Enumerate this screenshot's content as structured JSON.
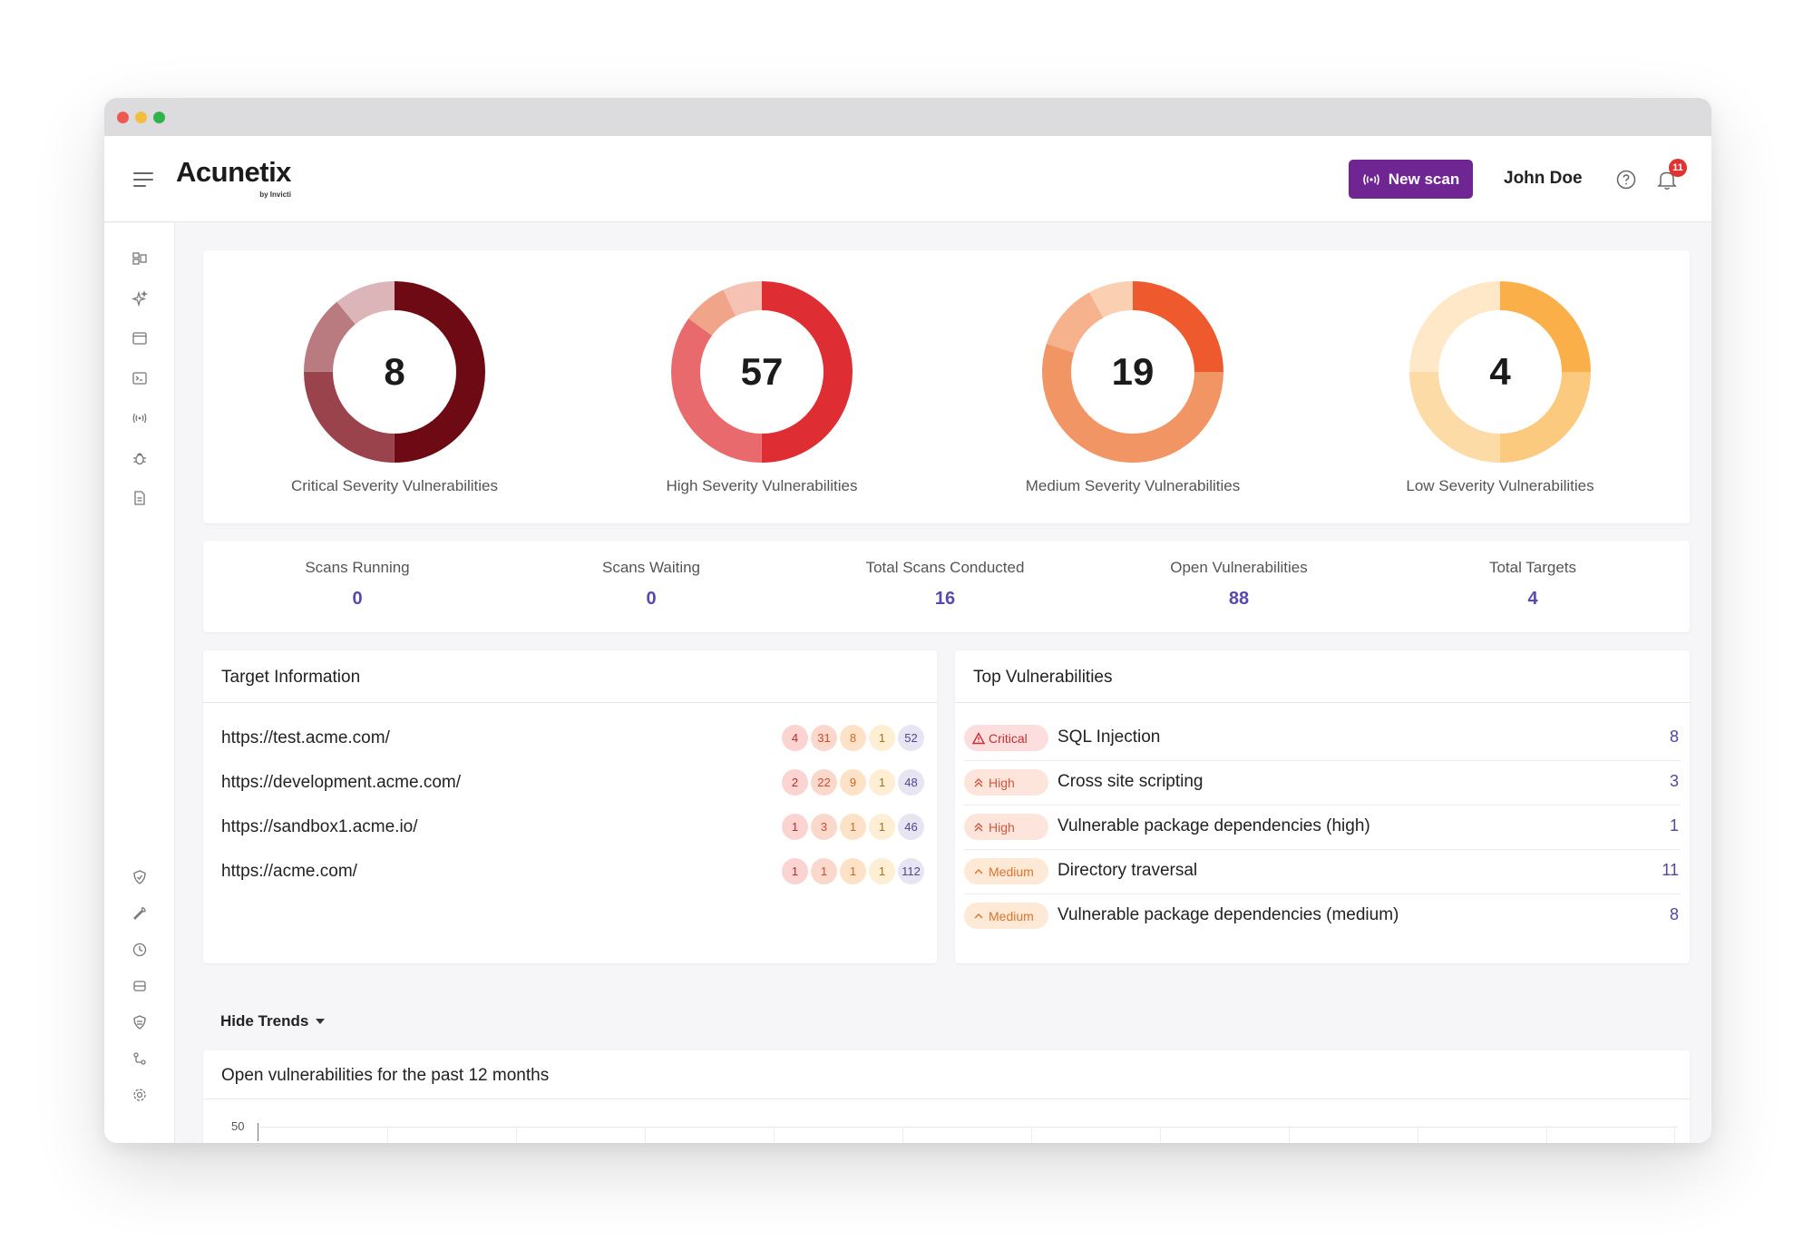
{
  "app": {
    "name": "Acunetix",
    "byline": "by Invicti"
  },
  "header": {
    "new_scan_label": "New scan",
    "user_name": "John Doe",
    "notification_count": "11"
  },
  "sidebar": {
    "top_icons": [
      "dashboard-icon",
      "sparkle-icon",
      "targets-icon",
      "terminal-icon",
      "scan-signal-icon",
      "bug-icon",
      "report-icon"
    ],
    "bottom_icons": [
      "shield-icon",
      "wrench-icon",
      "clock-icon",
      "storage-icon",
      "network-icon",
      "integrations-icon",
      "settings-icon"
    ]
  },
  "severity_summary": [
    {
      "count": "8",
      "label": "Critical Severity Vulnerabilities",
      "colors": [
        "#6e0a13",
        "#9a434c",
        "#b97a80",
        "#dcb5b8"
      ],
      "shares": [
        0.5,
        0.25,
        0.14,
        0.11
      ]
    },
    {
      "count": "57",
      "label": "High Severity Vulnerabilities",
      "colors": [
        "#df2e33",
        "#e86a6c",
        "#f0a48a",
        "#f6c2b3"
      ],
      "shares": [
        0.5,
        0.35,
        0.08,
        0.07
      ]
    },
    {
      "count": "19",
      "label": "Medium Severity Vulnerabilities",
      "colors": [
        "#ee5a2d",
        "#f29564",
        "#f6b28c",
        "#fbd0b2"
      ],
      "shares": [
        0.25,
        0.55,
        0.12,
        0.08
      ]
    },
    {
      "count": "4",
      "label": "Low Severity Vulnerabilities",
      "colors": [
        "#fbaf48",
        "#fcca7f",
        "#fddba6",
        "#fee8c8"
      ],
      "shares": [
        0.25,
        0.25,
        0.25,
        0.25
      ]
    }
  ],
  "stats": [
    {
      "label": "Scans Running",
      "value": "0"
    },
    {
      "label": "Scans Waiting",
      "value": "0"
    },
    {
      "label": "Total Scans Conducted",
      "value": "16"
    },
    {
      "label": "Open Vulnerabilities",
      "value": "88"
    },
    {
      "label": "Total Targets",
      "value": "4"
    }
  ],
  "target_information": {
    "title": "Target Information",
    "rows": [
      {
        "url": "https://test.acme.com/",
        "counts": [
          "4",
          "31",
          "8",
          "1",
          "52"
        ]
      },
      {
        "url": "https://development.acme.com/",
        "counts": [
          "2",
          "22",
          "9",
          "1",
          "48"
        ]
      },
      {
        "url": "https://sandbox1.acme.io/",
        "counts": [
          "1",
          "3",
          "1",
          "1",
          "46"
        ]
      },
      {
        "url": "https://acme.com/",
        "counts": [
          "1",
          "1",
          "1",
          "1",
          "112"
        ]
      }
    ]
  },
  "top_vulnerabilities": {
    "title": "Top Vulnerabilities",
    "rows": [
      {
        "severity": "Critical",
        "name": "SQL Injection",
        "count": "8"
      },
      {
        "severity": "High",
        "name": "Cross site scripting",
        "count": "3"
      },
      {
        "severity": "High",
        "name": "Vulnerable package dependencies (high)",
        "count": "1"
      },
      {
        "severity": "Medium",
        "name": "Directory traversal",
        "count": "11"
      },
      {
        "severity": "Medium",
        "name": "Vulnerable package dependencies (medium)",
        "count": "8"
      }
    ]
  },
  "trends": {
    "toggle_label": "Hide Trends",
    "title": "Open vulnerabilities for the past 12 months",
    "y_max_label": "50"
  }
}
